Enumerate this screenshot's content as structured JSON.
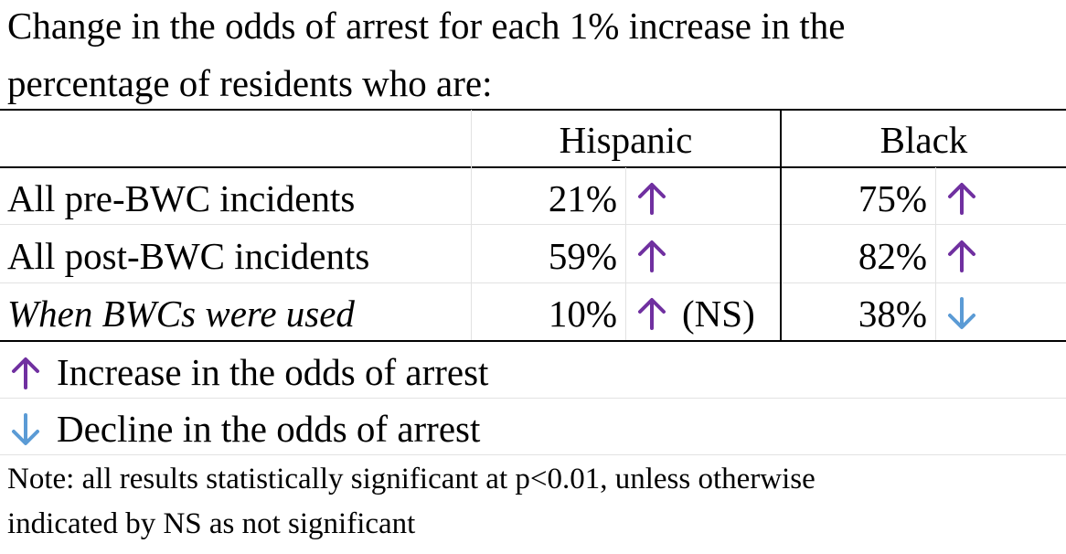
{
  "chart_data": {
    "type": "table",
    "title_line1": "Change in the odds of arrest for each 1% increase in the",
    "title_line2": "percentage of residents who are:",
    "columns": [
      "Hispanic",
      "Black"
    ],
    "rows": [
      {
        "label": "All pre-BWC incidents",
        "italic": false,
        "hispanic": {
          "value": "21%",
          "direction": "increase",
          "note": ""
        },
        "black": {
          "value": "75%",
          "direction": "increase"
        }
      },
      {
        "label": "All post-BWC incidents",
        "italic": false,
        "hispanic": {
          "value": "59%",
          "direction": "increase",
          "note": ""
        },
        "black": {
          "value": "82%",
          "direction": "increase"
        }
      },
      {
        "label": "When BWCs were used",
        "italic": true,
        "hispanic": {
          "value": "10%",
          "direction": "increase",
          "note": "(NS)"
        },
        "black": {
          "value": "38%",
          "direction": "decline"
        }
      }
    ],
    "legend": [
      {
        "direction": "increase",
        "label": "Increase in the odds of arrest"
      },
      {
        "direction": "decline",
        "label": "Decline in the odds of arrest"
      }
    ],
    "note_line1": "Note: all results statistically significant at p<0.01, unless otherwise",
    "note_line2": "indicated by NS as not significant",
    "colors": {
      "increase": "#7030a0",
      "decline": "#5b9bd5"
    }
  }
}
